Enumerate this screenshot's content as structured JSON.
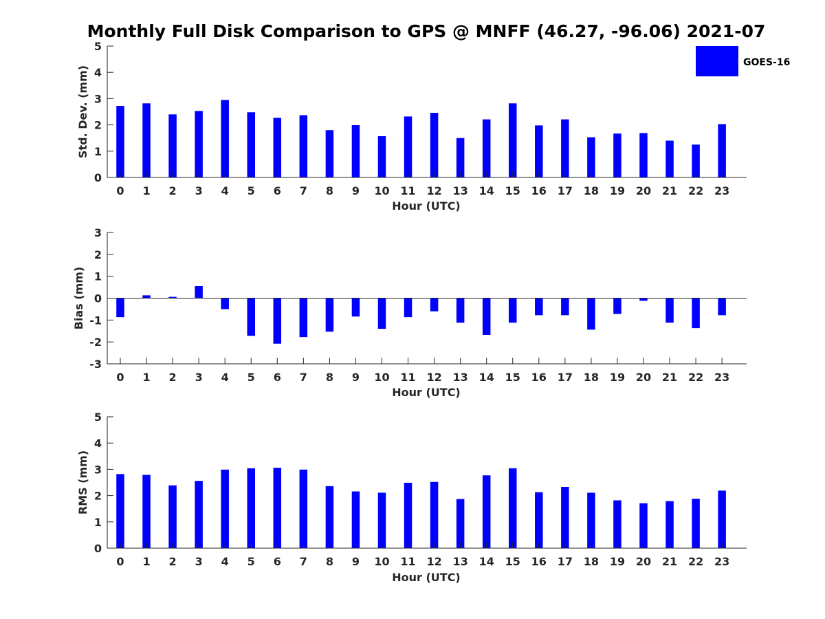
{
  "title": "Monthly Full Disk Comparison to GPS @ MNFF (46.27, -96.06) 2021-07",
  "legend": {
    "label": "GOES-16",
    "color": "#0000ff"
  },
  "colors": {
    "bar": "#0000ff",
    "axis": "#262626",
    "background": "#ffffff"
  },
  "chart_data": [
    {
      "type": "bar",
      "title": "",
      "xlabel": "Hour (UTC)",
      "ylabel": "Std. Dev. (mm)",
      "ylim": [
        0,
        5
      ],
      "yticks": [
        0,
        1,
        2,
        3,
        4,
        5
      ],
      "categories": [
        "0",
        "1",
        "2",
        "3",
        "4",
        "5",
        "6",
        "7",
        "8",
        "9",
        "10",
        "11",
        "12",
        "13",
        "14",
        "15",
        "16",
        "17",
        "18",
        "19",
        "20",
        "21",
        "22",
        "23"
      ],
      "series": [
        {
          "name": "GOES-16",
          "values": [
            2.72,
            2.82,
            2.4,
            2.53,
            2.95,
            2.48,
            2.27,
            2.37,
            1.8,
            1.99,
            1.57,
            2.32,
            2.46,
            1.5,
            2.21,
            2.82,
            1.98,
            2.21,
            1.53,
            1.67,
            1.69,
            1.4,
            1.25,
            2.03
          ]
        }
      ]
    },
    {
      "type": "bar",
      "title": "",
      "xlabel": "Hour (UTC)",
      "ylabel": "Bias (mm)",
      "ylim": [
        -3,
        3
      ],
      "yticks": [
        -3,
        -2,
        -1,
        0,
        1,
        2,
        3
      ],
      "categories": [
        "0",
        "1",
        "2",
        "3",
        "4",
        "5",
        "6",
        "7",
        "8",
        "9",
        "10",
        "11",
        "12",
        "13",
        "14",
        "15",
        "16",
        "17",
        "18",
        "19",
        "20",
        "21",
        "22",
        "23"
      ],
      "series": [
        {
          "name": "GOES-16",
          "values": [
            -0.87,
            0.13,
            0.06,
            0.55,
            -0.5,
            -1.72,
            -2.08,
            -1.78,
            -1.53,
            -0.84,
            -1.4,
            -0.87,
            -0.6,
            -1.12,
            -1.68,
            -1.12,
            -0.78,
            -0.78,
            -1.44,
            -0.72,
            -0.12,
            -1.12,
            -1.37,
            -0.78
          ]
        }
      ]
    },
    {
      "type": "bar",
      "title": "",
      "xlabel": "Hour (UTC)",
      "ylabel": "RMS (mm)",
      "ylim": [
        0,
        5
      ],
      "yticks": [
        0,
        1,
        2,
        3,
        4,
        5
      ],
      "categories": [
        "0",
        "1",
        "2",
        "3",
        "4",
        "5",
        "6",
        "7",
        "8",
        "9",
        "10",
        "11",
        "12",
        "13",
        "14",
        "15",
        "16",
        "17",
        "18",
        "19",
        "20",
        "21",
        "22",
        "23"
      ],
      "series": [
        {
          "name": "GOES-16",
          "values": [
            2.82,
            2.79,
            2.39,
            2.56,
            2.99,
            3.04,
            3.06,
            2.99,
            2.36,
            2.16,
            2.11,
            2.49,
            2.52,
            1.87,
            2.77,
            3.04,
            2.13,
            2.33,
            2.11,
            1.82,
            1.71,
            1.79,
            1.88,
            2.19
          ]
        }
      ]
    }
  ]
}
